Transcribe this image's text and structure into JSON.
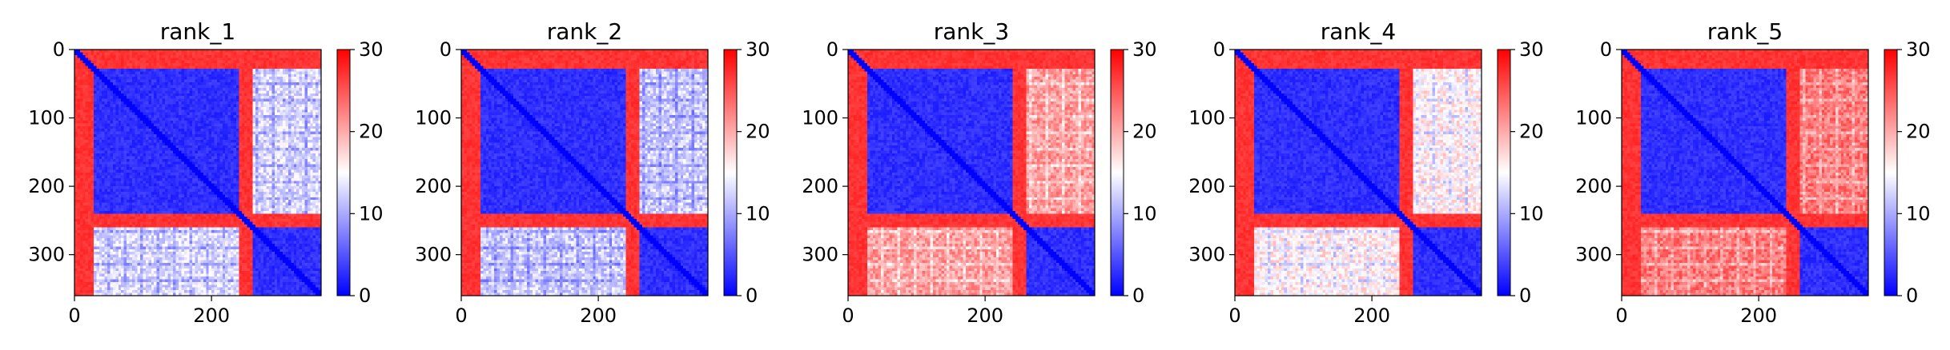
{
  "chart_data": [
    {
      "type": "heatmap",
      "title": "rank_1",
      "extent": [
        0,
        360
      ],
      "xticks": [
        0,
        200
      ],
      "yticks": [
        0,
        100,
        200,
        300
      ],
      "colorbar": {
        "ticks": [
          0,
          10,
          20,
          30
        ],
        "range": [
          0,
          30
        ],
        "colormap": "bwr",
        "low": "#0000ff",
        "mid": "#ffffff",
        "high": "#ff0000"
      },
      "domains": [
        {
          "start": 30,
          "end": 240
        },
        {
          "start": 260,
          "end": 360
        }
      ],
      "block_values": {
        "intra": 1.5,
        "inter": 13,
        "flank_low": 26,
        "flank_high": 28
      }
    },
    {
      "type": "heatmap",
      "title": "rank_2",
      "extent": [
        0,
        360
      ],
      "xticks": [
        0,
        200
      ],
      "yticks": [
        0,
        100,
        200,
        300
      ],
      "colorbar": {
        "ticks": [
          0,
          10,
          20,
          30
        ],
        "range": [
          0,
          30
        ],
        "colormap": "bwr",
        "low": "#0000ff",
        "mid": "#ffffff",
        "high": "#ff0000"
      },
      "domains": [
        {
          "start": 30,
          "end": 240
        },
        {
          "start": 260,
          "end": 360
        }
      ],
      "block_values": {
        "intra": 1.5,
        "inter": 12,
        "flank_low": 26,
        "flank_high": 28
      }
    },
    {
      "type": "heatmap",
      "title": "rank_3",
      "extent": [
        0,
        360
      ],
      "xticks": [
        0,
        200
      ],
      "yticks": [
        0,
        100,
        200,
        300
      ],
      "colorbar": {
        "ticks": [
          0,
          10,
          20,
          30
        ],
        "range": [
          0,
          30
        ],
        "colormap": "bwr",
        "low": "#0000ff",
        "mid": "#ffffff",
        "high": "#ff0000"
      },
      "domains": [
        {
          "start": 30,
          "end": 240
        },
        {
          "start": 260,
          "end": 360
        }
      ],
      "block_values": {
        "intra": 1.5,
        "inter": 21,
        "flank_low": 26,
        "flank_high": 28
      }
    },
    {
      "type": "heatmap",
      "title": "rank_4",
      "extent": [
        0,
        360
      ],
      "xticks": [
        0,
        200
      ],
      "yticks": [
        0,
        100,
        200,
        300
      ],
      "colorbar": {
        "ticks": [
          0,
          10,
          20,
          30
        ],
        "range": [
          0,
          30
        ],
        "colormap": "bwr",
        "low": "#0000ff",
        "mid": "#ffffff",
        "high": "#ff0000"
      },
      "domains": [
        {
          "start": 30,
          "end": 240
        },
        {
          "start": 260,
          "end": 360
        }
      ],
      "block_values": {
        "intra": 1.5,
        "inter": 16,
        "flank_low": 26,
        "flank_high": 28
      }
    },
    {
      "type": "heatmap",
      "title": "rank_5",
      "extent": [
        0,
        360
      ],
      "xticks": [
        0,
        200
      ],
      "yticks": [
        0,
        100,
        200,
        300
      ],
      "colorbar": {
        "ticks": [
          0,
          10,
          20,
          30
        ],
        "range": [
          0,
          30
        ],
        "colormap": "bwr",
        "low": "#0000ff",
        "mid": "#ffffff",
        "high": "#ff0000"
      },
      "domains": [
        {
          "start": 30,
          "end": 240
        },
        {
          "start": 260,
          "end": 360
        }
      ],
      "block_values": {
        "intra": 1.5,
        "inter": 23,
        "flank_low": 26,
        "flank_high": 28
      }
    }
  ]
}
